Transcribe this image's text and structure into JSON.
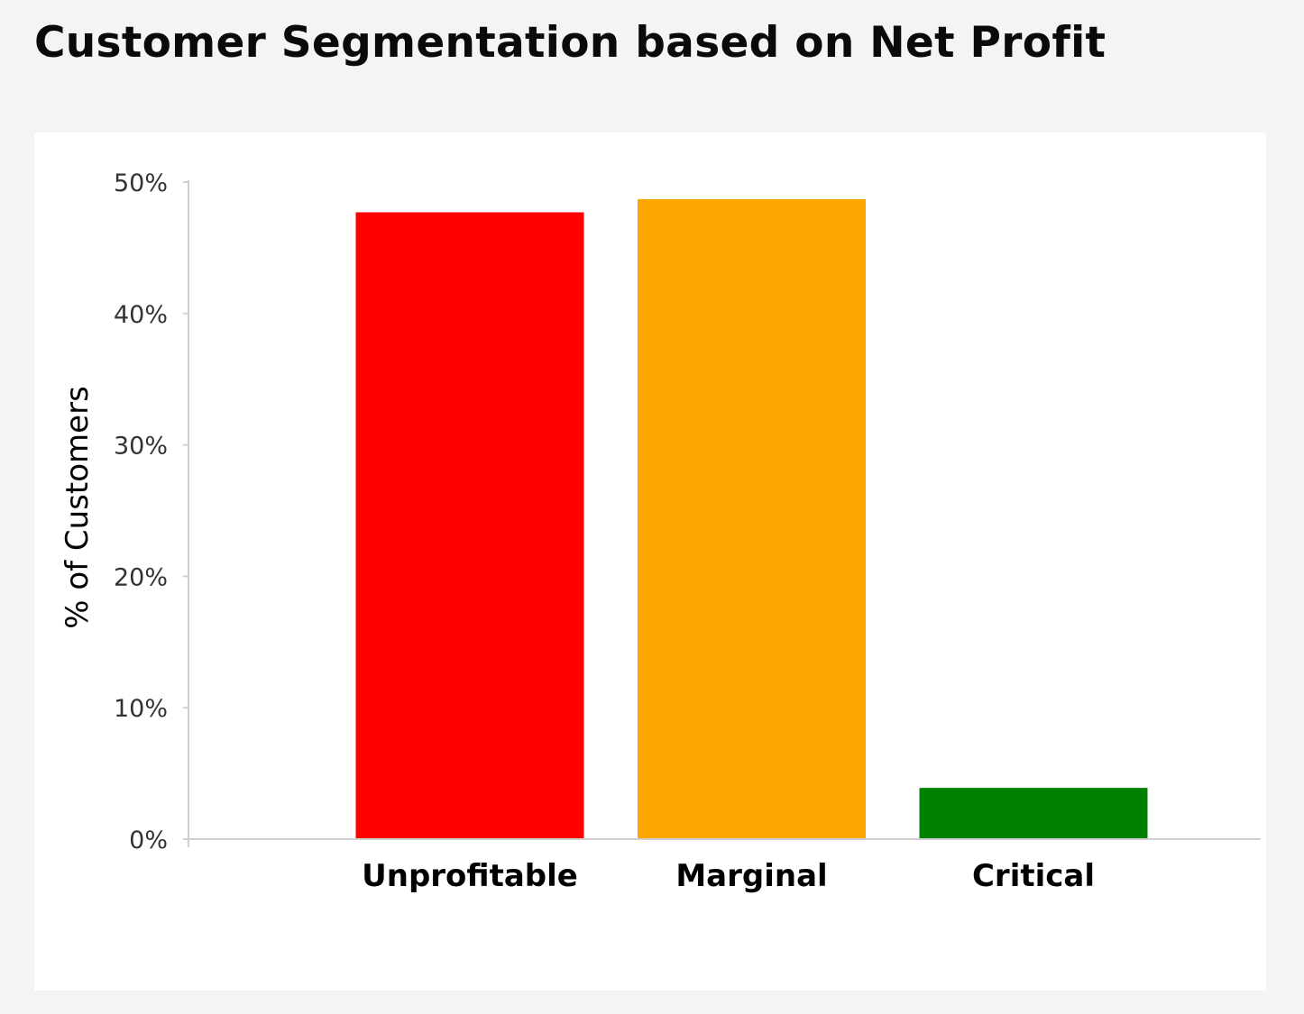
{
  "chart_data": {
    "type": "bar",
    "title": "Customer Segmentation based on Net Profit",
    "xlabel": "",
    "ylabel": "% of Customers",
    "categories": [
      "Unprofitable",
      "Marginal",
      "Critical"
    ],
    "values": [
      47.7,
      48.7,
      3.9
    ],
    "colors": [
      "#ff0000",
      "#ffa500",
      "#008000"
    ],
    "ylim": [
      0,
      50
    ],
    "yticks": [
      0,
      10,
      20,
      30,
      40,
      50
    ],
    "ytick_labels": [
      "0%",
      "10%",
      "20%",
      "30%",
      "40%",
      "50%"
    ],
    "grid": false,
    "legend": "none"
  }
}
